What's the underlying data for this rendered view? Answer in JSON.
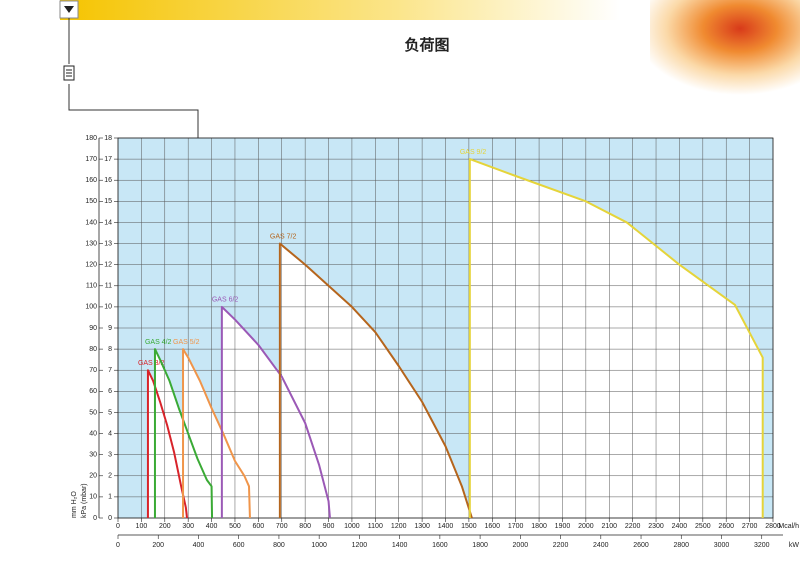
{
  "chart_data": {
    "type": "line",
    "title": "负荷图",
    "xlabel": "Mcal/h",
    "x2label": "kW",
    "ylabel": "mm H₂O",
    "y2label": "kPa (mbar)",
    "xlim": [
      0,
      2800
    ],
    "xticks": [
      0,
      100,
      200,
      300,
      400,
      500,
      600,
      700,
      800,
      900,
      1000,
      1100,
      1200,
      1300,
      1400,
      1500,
      1600,
      1700,
      1800,
      1900,
      2000,
      2100,
      2200,
      2300,
      2400,
      2500,
      2600,
      2700,
      2800
    ],
    "x2lim": [
      0,
      3256
    ],
    "x2ticks": [
      0,
      200,
      400,
      600,
      800,
      1000,
      1200,
      1400,
      1600,
      1800,
      2000,
      2200,
      2400,
      2600,
      2800,
      3000,
      3200
    ],
    "ylim": [
      0,
      180
    ],
    "yticks": [
      0,
      10,
      20,
      30,
      40,
      50,
      60,
      70,
      80,
      90,
      100,
      110,
      120,
      130,
      140,
      150,
      160,
      170,
      180
    ],
    "y2lim": [
      0,
      18
    ],
    "y2ticks": [
      0,
      1,
      2,
      3,
      4,
      5,
      6,
      7,
      8,
      9,
      10,
      11,
      12,
      13,
      14,
      15,
      16,
      17,
      18
    ],
    "grid": true,
    "series": [
      {
        "name": "GAS 3/2",
        "color": "#d8232a",
        "x": [
          128,
          128,
          150,
          180,
          210,
          240,
          270,
          290,
          295
        ],
        "values": [
          0,
          70,
          65,
          55,
          44,
          31,
          15,
          5,
          0
        ]
      },
      {
        "name": "GAS 4/2",
        "color": "#3aaa35",
        "x": [
          158,
          158,
          180,
          220,
          260,
          300,
          340,
          380,
          400,
          402
        ],
        "values": [
          0,
          80,
          75,
          65,
          52,
          40,
          28,
          18,
          15,
          0
        ]
      },
      {
        "name": "GAS 5/2",
        "color": "#f0954a",
        "x": [
          278,
          278,
          300,
          350,
          400,
          450,
          500,
          540,
          560,
          564
        ],
        "values": [
          0,
          80,
          76,
          65,
          52,
          40,
          27,
          20,
          15,
          0
        ]
      },
      {
        "name": "GAS 6/2",
        "color": "#9b59b6",
        "x": [
          444,
          444,
          500,
          600,
          700,
          800,
          860,
          900,
          906
        ],
        "values": [
          0,
          100,
          94,
          82,
          67,
          45,
          25,
          8,
          0
        ]
      },
      {
        "name": "GAS 7/2",
        "color": "#b5651d",
        "x": [
          692,
          692,
          800,
          900,
          1000,
          1100,
          1200,
          1300,
          1400,
          1470,
          1513
        ],
        "values": [
          0,
          130,
          120,
          110,
          100,
          88,
          72,
          55,
          34,
          15,
          0
        ]
      },
      {
        "name": "GAS 9/2",
        "color": "#e5d43a",
        "x": [
          1504,
          1504,
          1700,
          2000,
          2175,
          2400,
          2637,
          2756,
          2756
        ],
        "values": [
          0,
          170,
          162,
          150,
          140,
          120,
          101,
          76,
          0
        ]
      }
    ]
  }
}
